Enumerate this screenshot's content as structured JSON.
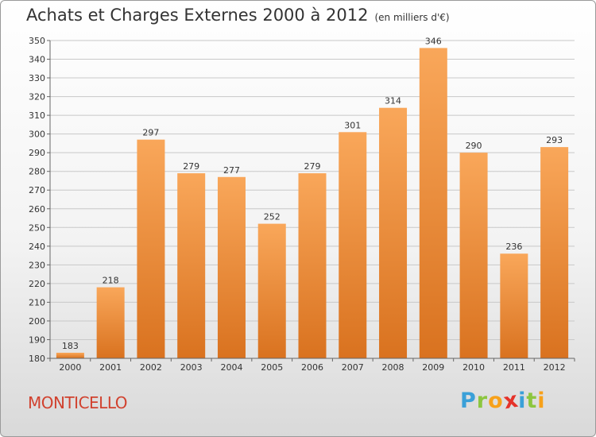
{
  "title": "Achats et Charges Externes 2000 à 2012",
  "subtitle": "(en milliers d'€)",
  "location": "MONTICELLO",
  "brand": {
    "letters": [
      {
        "ch": "P",
        "color": "#3aa0d8"
      },
      {
        "ch": "r",
        "color": "#8cc63f"
      },
      {
        "ch": "o",
        "color": "#f7a11a"
      },
      {
        "ch": "x",
        "color": "#e5332a"
      },
      {
        "ch": "i",
        "color": "#3aa0d8"
      },
      {
        "ch": "t",
        "color": "#8cc63f"
      },
      {
        "ch": "i",
        "color": "#f7a11a"
      }
    ]
  },
  "colors": {
    "bar_light": "#f9a75a",
    "bar_dark": "#d9721f",
    "grid": "#c8c8c8",
    "town": "#d1422f"
  },
  "chart_data": {
    "type": "bar",
    "title": "Achats et Charges Externes 2000 à 2012",
    "xlabel": "",
    "ylabel": "",
    "categories": [
      "2000",
      "2001",
      "2002",
      "2003",
      "2004",
      "2005",
      "2006",
      "2007",
      "2008",
      "2009",
      "2010",
      "2011",
      "2012"
    ],
    "values": [
      183,
      218,
      297,
      279,
      277,
      252,
      279,
      301,
      314,
      346,
      290,
      236,
      293
    ],
    "ylim": [
      180,
      350
    ],
    "yticks": [
      180,
      190,
      200,
      210,
      220,
      230,
      240,
      250,
      260,
      270,
      280,
      290,
      300,
      310,
      320,
      330,
      340,
      350
    ],
    "grid": true
  }
}
